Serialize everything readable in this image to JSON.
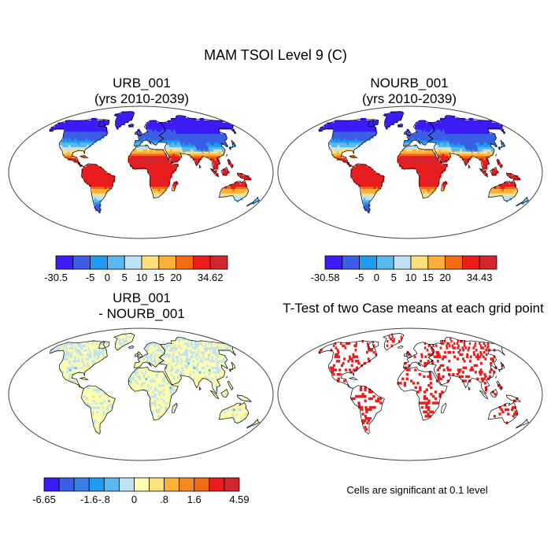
{
  "main_title": "MAM TSOI Level 9 (C)",
  "panels": [
    {
      "title_line1": "URB_001",
      "title_line2": "(yrs 2010-2039)",
      "map_type": "tsoi",
      "colorbar": {
        "colors": [
          "#3b1cf4",
          "#3a5ee6",
          "#1f9bf0",
          "#5ab8f0",
          "#bfe3f2",
          "#fde07a",
          "#fbb03a",
          "#f36a14",
          "#ec1c1c",
          "#d3252e"
        ],
        "labels": [
          "-30.5",
          "-5",
          "0",
          "5",
          "10",
          "15",
          "20",
          "34.62"
        ],
        "label_boundaries": [
          0,
          2,
          3,
          4,
          5,
          6,
          7,
          9
        ]
      }
    },
    {
      "title_line1": "NOURB_001",
      "title_line2": "(yrs 2010-2039)",
      "map_type": "tsoi",
      "colorbar": {
        "colors": [
          "#3b1cf4",
          "#3a5ee6",
          "#1f9bf0",
          "#5ab8f0",
          "#bfe3f2",
          "#fde07a",
          "#fbb03a",
          "#f36a14",
          "#ec1c1c",
          "#d3252e"
        ],
        "labels": [
          "-30.58",
          "-5",
          "0",
          "5",
          "10",
          "15",
          "20",
          "34.43"
        ],
        "label_boundaries": [
          0,
          2,
          3,
          4,
          5,
          6,
          7,
          9
        ]
      }
    },
    {
      "title_line1": "URB_001",
      "title_line2": "- NOURB_001",
      "map_type": "diff",
      "colorbar": {
        "colors": [
          "#3b1cf4",
          "#3a5ee6",
          "#3b7ee8",
          "#1f9bf0",
          "#5ab8f0",
          "#bfe3f2",
          "#fdfdb0",
          "#fde07a",
          "#fbb03a",
          "#f38a20",
          "#f36a14",
          "#ec1c1c",
          "#d3252e"
        ],
        "labels": [
          "-6.65",
          "-1.6",
          "-.8",
          "0",
          ".8",
          "1.6",
          "4.59"
        ],
        "label_boundaries": [
          0,
          3,
          4,
          6,
          8,
          10,
          13
        ]
      }
    },
    {
      "title_line1": "T-Test of two Case means at each grid point",
      "title_line2": "",
      "map_type": "ttest",
      "note": "Cells are significant at 0.1 level"
    }
  ],
  "colors": {
    "ttest_red": "#ec1c1c",
    "coast": "#000000",
    "frame": "#444444"
  }
}
